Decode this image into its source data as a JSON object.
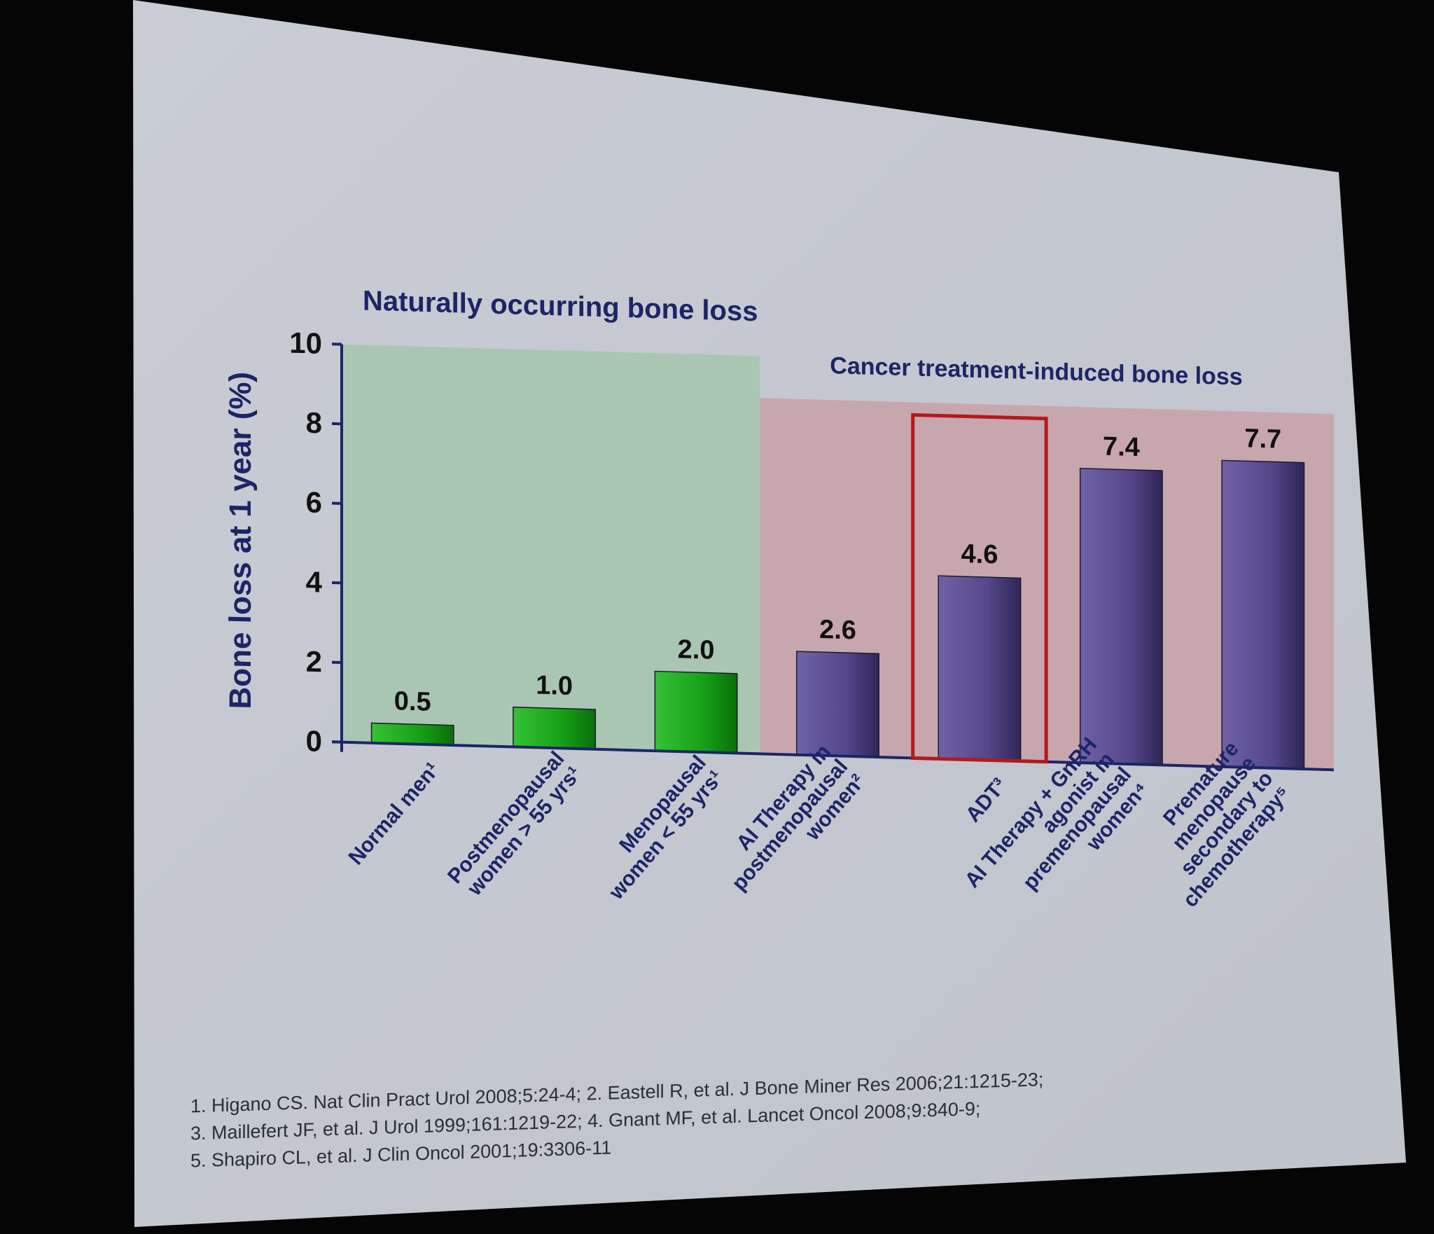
{
  "colors": {
    "background": "#050506",
    "screen": "#c4c8d0",
    "axis": "#1c2566",
    "title_text": "#1c2566",
    "natural_region": "#a9c6b2",
    "cancer_region": "#c8a6ae",
    "natural_bar": "#1aa81a",
    "cancer_bar": "#5a4c8e",
    "highlight_box": "#b21a1a",
    "reference_text": "#2a2e3a"
  },
  "chart_data": {
    "type": "bar",
    "ylabel": "Bone loss at 1 year (%)",
    "ylim": [
      0,
      10
    ],
    "yticks": [
      "0",
      "2",
      "4",
      "6",
      "8",
      "10"
    ],
    "groups": [
      {
        "label": "Naturally occurring bone loss",
        "categories": [
          0,
          1,
          2
        ]
      },
      {
        "label": "Cancer treatment-induced bone loss",
        "categories": [
          3,
          4,
          5,
          6
        ]
      }
    ],
    "highlighted_category": 4,
    "bars": [
      {
        "lines": [
          "Normal men¹"
        ],
        "value": 0.5,
        "label": "0.5",
        "group": 0
      },
      {
        "lines": [
          "Postmenopausal",
          "women > 55 yrs¹"
        ],
        "value": 1.0,
        "label": "1.0",
        "group": 0
      },
      {
        "lines": [
          "Menopausal",
          "women < 55 yrs¹"
        ],
        "value": 2.0,
        "label": "2.0",
        "group": 0
      },
      {
        "lines": [
          "AI Therapy in",
          "postmenopausal",
          "women²"
        ],
        "value": 2.6,
        "label": "2.6",
        "group": 1
      },
      {
        "lines": [
          "ADT³"
        ],
        "value": 4.6,
        "label": "4.6",
        "group": 1
      },
      {
        "lines": [
          "AI Therapy + GnRH",
          "agonist in",
          "premenopausal",
          "women⁴"
        ],
        "value": 7.4,
        "label": "7.4",
        "group": 1
      },
      {
        "lines": [
          "Premature",
          "menopause",
          "secondary to",
          "chemotherapy⁵"
        ],
        "value": 7.7,
        "label": "7.7",
        "group": 1
      }
    ]
  },
  "references": {
    "line1": "1. Higano CS. Nat Clin Pract Urol 2008;5:24-4; 2. Eastell R, et al. J Bone Miner Res 2006;21:1215-23;",
    "line2": "3. Maillefert JF, et al. J Urol 1999;161:1219-22; 4. Gnant MF, et al. Lancet Oncol 2008;9:840-9;",
    "line3": "5. Shapiro CL, et al. J Clin Oncol 2001;19:3306-11"
  }
}
